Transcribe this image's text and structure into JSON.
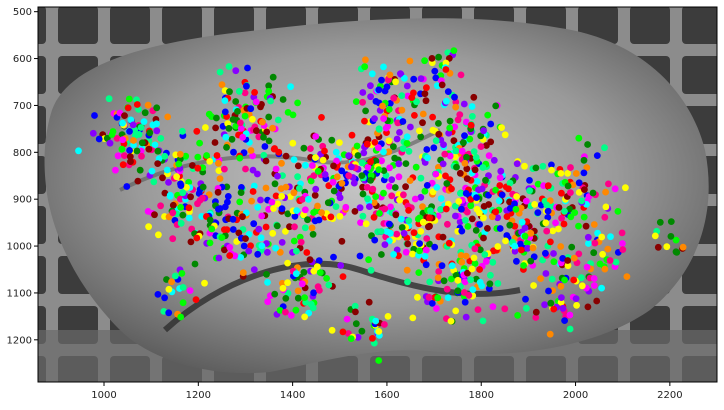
{
  "figure": {
    "x_ticks": [
      "1000",
      "1200",
      "1400",
      "1600",
      "1800",
      "2000",
      "2200"
    ],
    "y_ticks": [
      "500",
      "600",
      "700",
      "800",
      "900",
      "1000",
      "1100",
      "1200"
    ]
  },
  "chart_data": {
    "type": "scatter",
    "title": "",
    "xlabel": "",
    "ylabel": "",
    "xlim": [
      860,
      2300
    ],
    "ylim": [
      1290,
      490
    ],
    "y_inverted": true,
    "grid": false,
    "background": "grayscale photograph of a rock on a gray backdrop with dark square tiles",
    "marker_colors": [
      "#ff00ff",
      "#00ff00",
      "#ffff00",
      "#0000ff",
      "#ff0000",
      "#00ffff",
      "#ff8800",
      "#8800ff",
      "#00ff88",
      "#ff0088",
      "#880000",
      "#008800"
    ],
    "clusters": [
      {
        "x": 1060,
        "y": 760,
        "spread": 60,
        "count": 90
      },
      {
        "x": 1180,
        "y": 870,
        "spread": 90,
        "count": 120
      },
      {
        "x": 1300,
        "y": 720,
        "spread": 80,
        "count": 110
      },
      {
        "x": 1280,
        "y": 960,
        "spread": 80,
        "count": 90
      },
      {
        "x": 1430,
        "y": 900,
        "spread": 90,
        "count": 120
      },
      {
        "x": 1420,
        "y": 1080,
        "spread": 60,
        "count": 60
      },
      {
        "x": 1560,
        "y": 820,
        "spread": 90,
        "count": 130
      },
      {
        "x": 1620,
        "y": 690,
        "spread": 60,
        "count": 70
      },
      {
        "x": 1650,
        "y": 940,
        "spread": 100,
        "count": 150
      },
      {
        "x": 1760,
        "y": 780,
        "spread": 80,
        "count": 110
      },
      {
        "x": 1820,
        "y": 900,
        "spread": 90,
        "count": 120
      },
      {
        "x": 1760,
        "y": 1080,
        "spread": 80,
        "count": 80
      },
      {
        "x": 1900,
        "y": 980,
        "spread": 80,
        "count": 90
      },
      {
        "x": 1990,
        "y": 880,
        "spread": 70,
        "count": 70
      },
      {
        "x": 2030,
        "y": 1020,
        "spread": 60,
        "count": 45
      },
      {
        "x": 1960,
        "y": 1120,
        "spread": 60,
        "count": 40
      },
      {
        "x": 1550,
        "y": 1180,
        "spread": 50,
        "count": 30
      },
      {
        "x": 1160,
        "y": 1100,
        "spread": 40,
        "count": 20
      },
      {
        "x": 2200,
        "y": 980,
        "spread": 30,
        "count": 12
      },
      {
        "x": 1720,
        "y": 620,
        "spread": 40,
        "count": 20
      }
    ]
  }
}
